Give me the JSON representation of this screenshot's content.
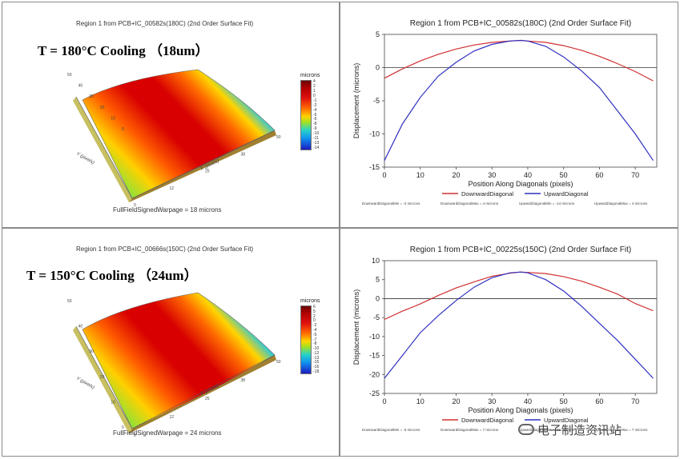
{
  "heatmaps": [
    {
      "title": "Region 1 from PCB+IC_00582s(180C) (2nd Order Surface Fit)",
      "heading": "T = 180°C Cooling （18um）",
      "colorbar_label": "microns",
      "colorbar_ticks": [
        "4",
        "2",
        "1",
        "0",
        "-1",
        "-2",
        "-4",
        "-5",
        "-6",
        "-8",
        "-9",
        "-10",
        "-11",
        "-13",
        "-14"
      ],
      "y_axis_label": "Y (pixels)",
      "x_axis_label": "X (pixels)",
      "y_ticks": [
        "50",
        "40",
        "30",
        "20",
        "10",
        "0"
      ],
      "x_ticks": [
        "0",
        "12",
        "25",
        "38",
        "50"
      ],
      "caption": "FullFieldSignedWarpage = 18 microns"
    },
    {
      "title": "Region 1 from PCB+IC_00666s(150C) (2nd Order Surface Fit)",
      "heading": "T = 150°C Cooling （24um）",
      "colorbar_label": "microns",
      "colorbar_ticks": [
        "6",
        "5",
        "2",
        "0",
        "-2",
        "-4",
        "-5",
        "-7",
        "-8",
        "-10",
        "-12",
        "-13",
        "-15",
        "-16",
        "-18"
      ],
      "y_axis_label": "Y (pixels)",
      "x_axis_label": "X (pixels)",
      "y_ticks": [
        "50",
        "40",
        "30",
        "20",
        "10",
        "0"
      ],
      "x_ticks": [
        "0",
        "12",
        "25",
        "38",
        "50"
      ],
      "caption": "FullFieldSignedWarpage = 24 microns"
    }
  ],
  "chart_data": [
    {
      "type": "line",
      "title": "Region 1 from PCB+IC_00582s(180C) (2nd Order Surface Fit)",
      "xlabel": "Position Along Diagonals (pixels)",
      "ylabel": "Displacement (microns)",
      "xlim": [
        0,
        76
      ],
      "ylim": [
        -15,
        5
      ],
      "x_ticks": [
        0,
        10,
        20,
        30,
        40,
        50,
        60,
        70
      ],
      "y_ticks": [
        5,
        0,
        -5,
        -10,
        -15
      ],
      "legend": "bottom",
      "stats": [
        "DownwardDiagonalMin = -2 microns",
        "DownwardDiagonalMax = 4 microns",
        "UpwardDiagonalMin = -14 microns",
        "UpwardDiagonalMax = 4 microns"
      ],
      "series": [
        {
          "name": "DownwardDiagonal",
          "color": "#d03030",
          "x": [
            0,
            5,
            10,
            15,
            20,
            25,
            30,
            35,
            38,
            40,
            45,
            50,
            55,
            60,
            65,
            70,
            75
          ],
          "y": [
            -1.6,
            -0.2,
            1.0,
            2.0,
            2.8,
            3.4,
            3.8,
            4.0,
            4.1,
            4.0,
            3.8,
            3.3,
            2.6,
            1.7,
            0.6,
            -0.6,
            -2.0
          ]
        },
        {
          "name": "UpwardDiagonal",
          "color": "#3030c0",
          "x": [
            0,
            5,
            10,
            15,
            20,
            25,
            30,
            35,
            38,
            40,
            45,
            50,
            55,
            60,
            65,
            70,
            75
          ],
          "y": [
            -14.0,
            -8.5,
            -4.5,
            -1.3,
            0.8,
            2.5,
            3.5,
            4.0,
            4.1,
            4.0,
            3.2,
            1.6,
            -0.5,
            -3.0,
            -6.5,
            -10.0,
            -14.0
          ]
        }
      ]
    },
    {
      "type": "line",
      "title": "Region 1 from PCB+IC_00225s(150C) (2nd Order Surface Fit)",
      "xlabel": "Position Along Diagonals (pixels)",
      "ylabel": "Displacement (microns)",
      "xlim": [
        0,
        76
      ],
      "ylim": [
        -25,
        10
      ],
      "x_ticks": [
        0,
        10,
        20,
        30,
        40,
        50,
        60,
        70
      ],
      "y_ticks": [
        10,
        5,
        0,
        -5,
        -10,
        -15,
        -20,
        -25
      ],
      "legend": "bottom",
      "stats": [
        "DownwardDiagonalMin = -6 microns",
        "DownwardDiagonalMax = 7 microns",
        "UpwardDiagonalMin = -21 microns",
        "UpwardDiagonalMax = 7 microns"
      ],
      "series": [
        {
          "name": "DownwardDiagonal",
          "color": "#d03030",
          "x": [
            0,
            5,
            10,
            15,
            20,
            25,
            30,
            35,
            38,
            40,
            45,
            50,
            55,
            60,
            65,
            70,
            75
          ],
          "y": [
            -5.5,
            -3.3,
            -1.4,
            0.8,
            2.8,
            4.4,
            5.9,
            6.7,
            7.0,
            6.9,
            6.6,
            5.8,
            4.6,
            3.0,
            1.2,
            -1.3,
            -3.2
          ]
        },
        {
          "name": "UpwardDiagonal",
          "color": "#3030c0",
          "x": [
            0,
            5,
            10,
            15,
            20,
            25,
            30,
            35,
            38,
            40,
            45,
            50,
            55,
            60,
            65,
            70,
            75
          ],
          "y": [
            -21.0,
            -15.0,
            -9.0,
            -4.5,
            -0.5,
            3.0,
            5.5,
            6.8,
            7.0,
            6.8,
            5.0,
            2.0,
            -2.0,
            -6.5,
            -11.0,
            -16.0,
            -21.0
          ]
        }
      ]
    }
  ],
  "watermark": {
    "text": "电子制造资讯站",
    "icon": "wechat-icon"
  }
}
